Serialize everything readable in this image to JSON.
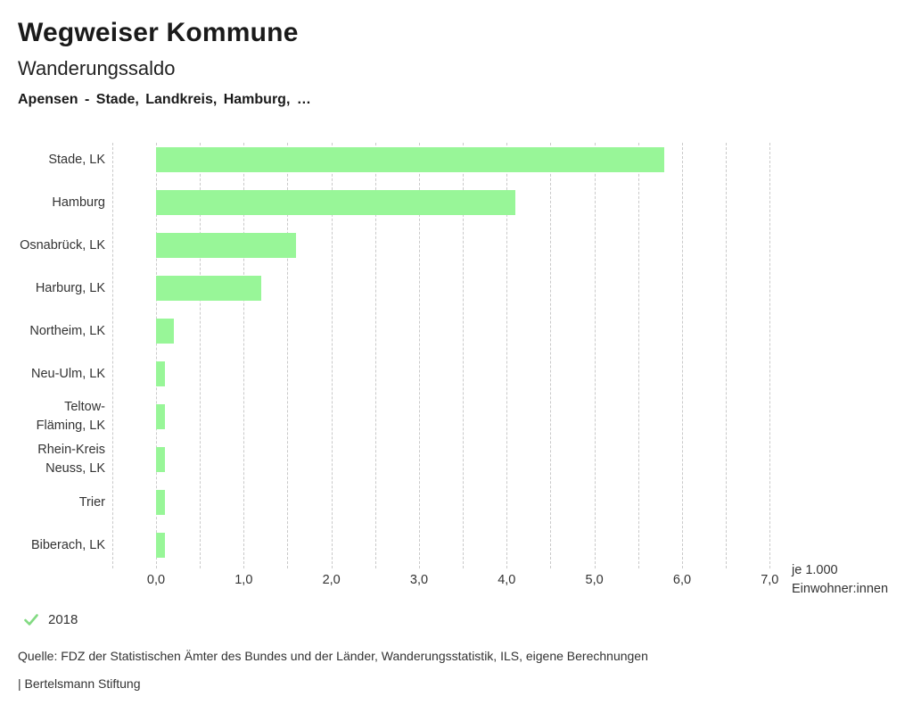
{
  "header": {
    "title": "Wegweiser Kommune",
    "subtitle": "Wanderungssaldo",
    "region_line": "Apensen - Stade, Landkreis, Hamburg, …"
  },
  "chart_data": {
    "type": "bar",
    "orientation": "horizontal",
    "title": "Wanderungssaldo",
    "categories": [
      "Stade, LK",
      "Hamburg",
      "Osnabrück, LK",
      "Harburg, LK",
      "Northeim, LK",
      "Neu-Ulm, LK",
      "Teltow-Fläming, LK",
      "Rhein-Kreis Neuss, LK",
      "Trier",
      "Biberach, LK"
    ],
    "category_label_lines": [
      [
        "Stade, LK"
      ],
      [
        "Hamburg"
      ],
      [
        "Osnabrück, LK"
      ],
      [
        "Harburg, LK"
      ],
      [
        "Northeim, LK"
      ],
      [
        "Neu-Ulm, LK"
      ],
      [
        "Teltow-",
        "Fläming, LK"
      ],
      [
        "Rhein-Kreis",
        "Neuss, LK"
      ],
      [
        "Trier"
      ],
      [
        "Biberach, LK"
      ]
    ],
    "series": [
      {
        "name": "2018",
        "values": [
          5.8,
          4.1,
          1.6,
          1.2,
          0.2,
          0.1,
          0.1,
          0.1,
          0.1,
          0.1
        ]
      }
    ],
    "xlim": [
      -0.5,
      7.0
    ],
    "grid_step": 0.5,
    "grid": true,
    "xticks": [
      0,
      1,
      2,
      3,
      4,
      5,
      6,
      7
    ],
    "xtick_labels": [
      "0,0",
      "1,0",
      "2,0",
      "3,0",
      "4,0",
      "5,0",
      "6,0",
      "7,0"
    ],
    "xlabel_lines": [
      "je 1.000",
      "Einwohner:innen"
    ],
    "bar_color": "#98f698",
    "gridline_color": "#c9c9c9",
    "legend_position": "bottom-left"
  },
  "legend": {
    "year": "2018",
    "check_color": "#82da82"
  },
  "footer": {
    "source": "Quelle: FDZ der Statistischen Ämter des Bundes und der Länder, Wanderungsstatistik, ILS, eigene Berechnungen",
    "branding": "| Bertelsmann Stiftung"
  }
}
